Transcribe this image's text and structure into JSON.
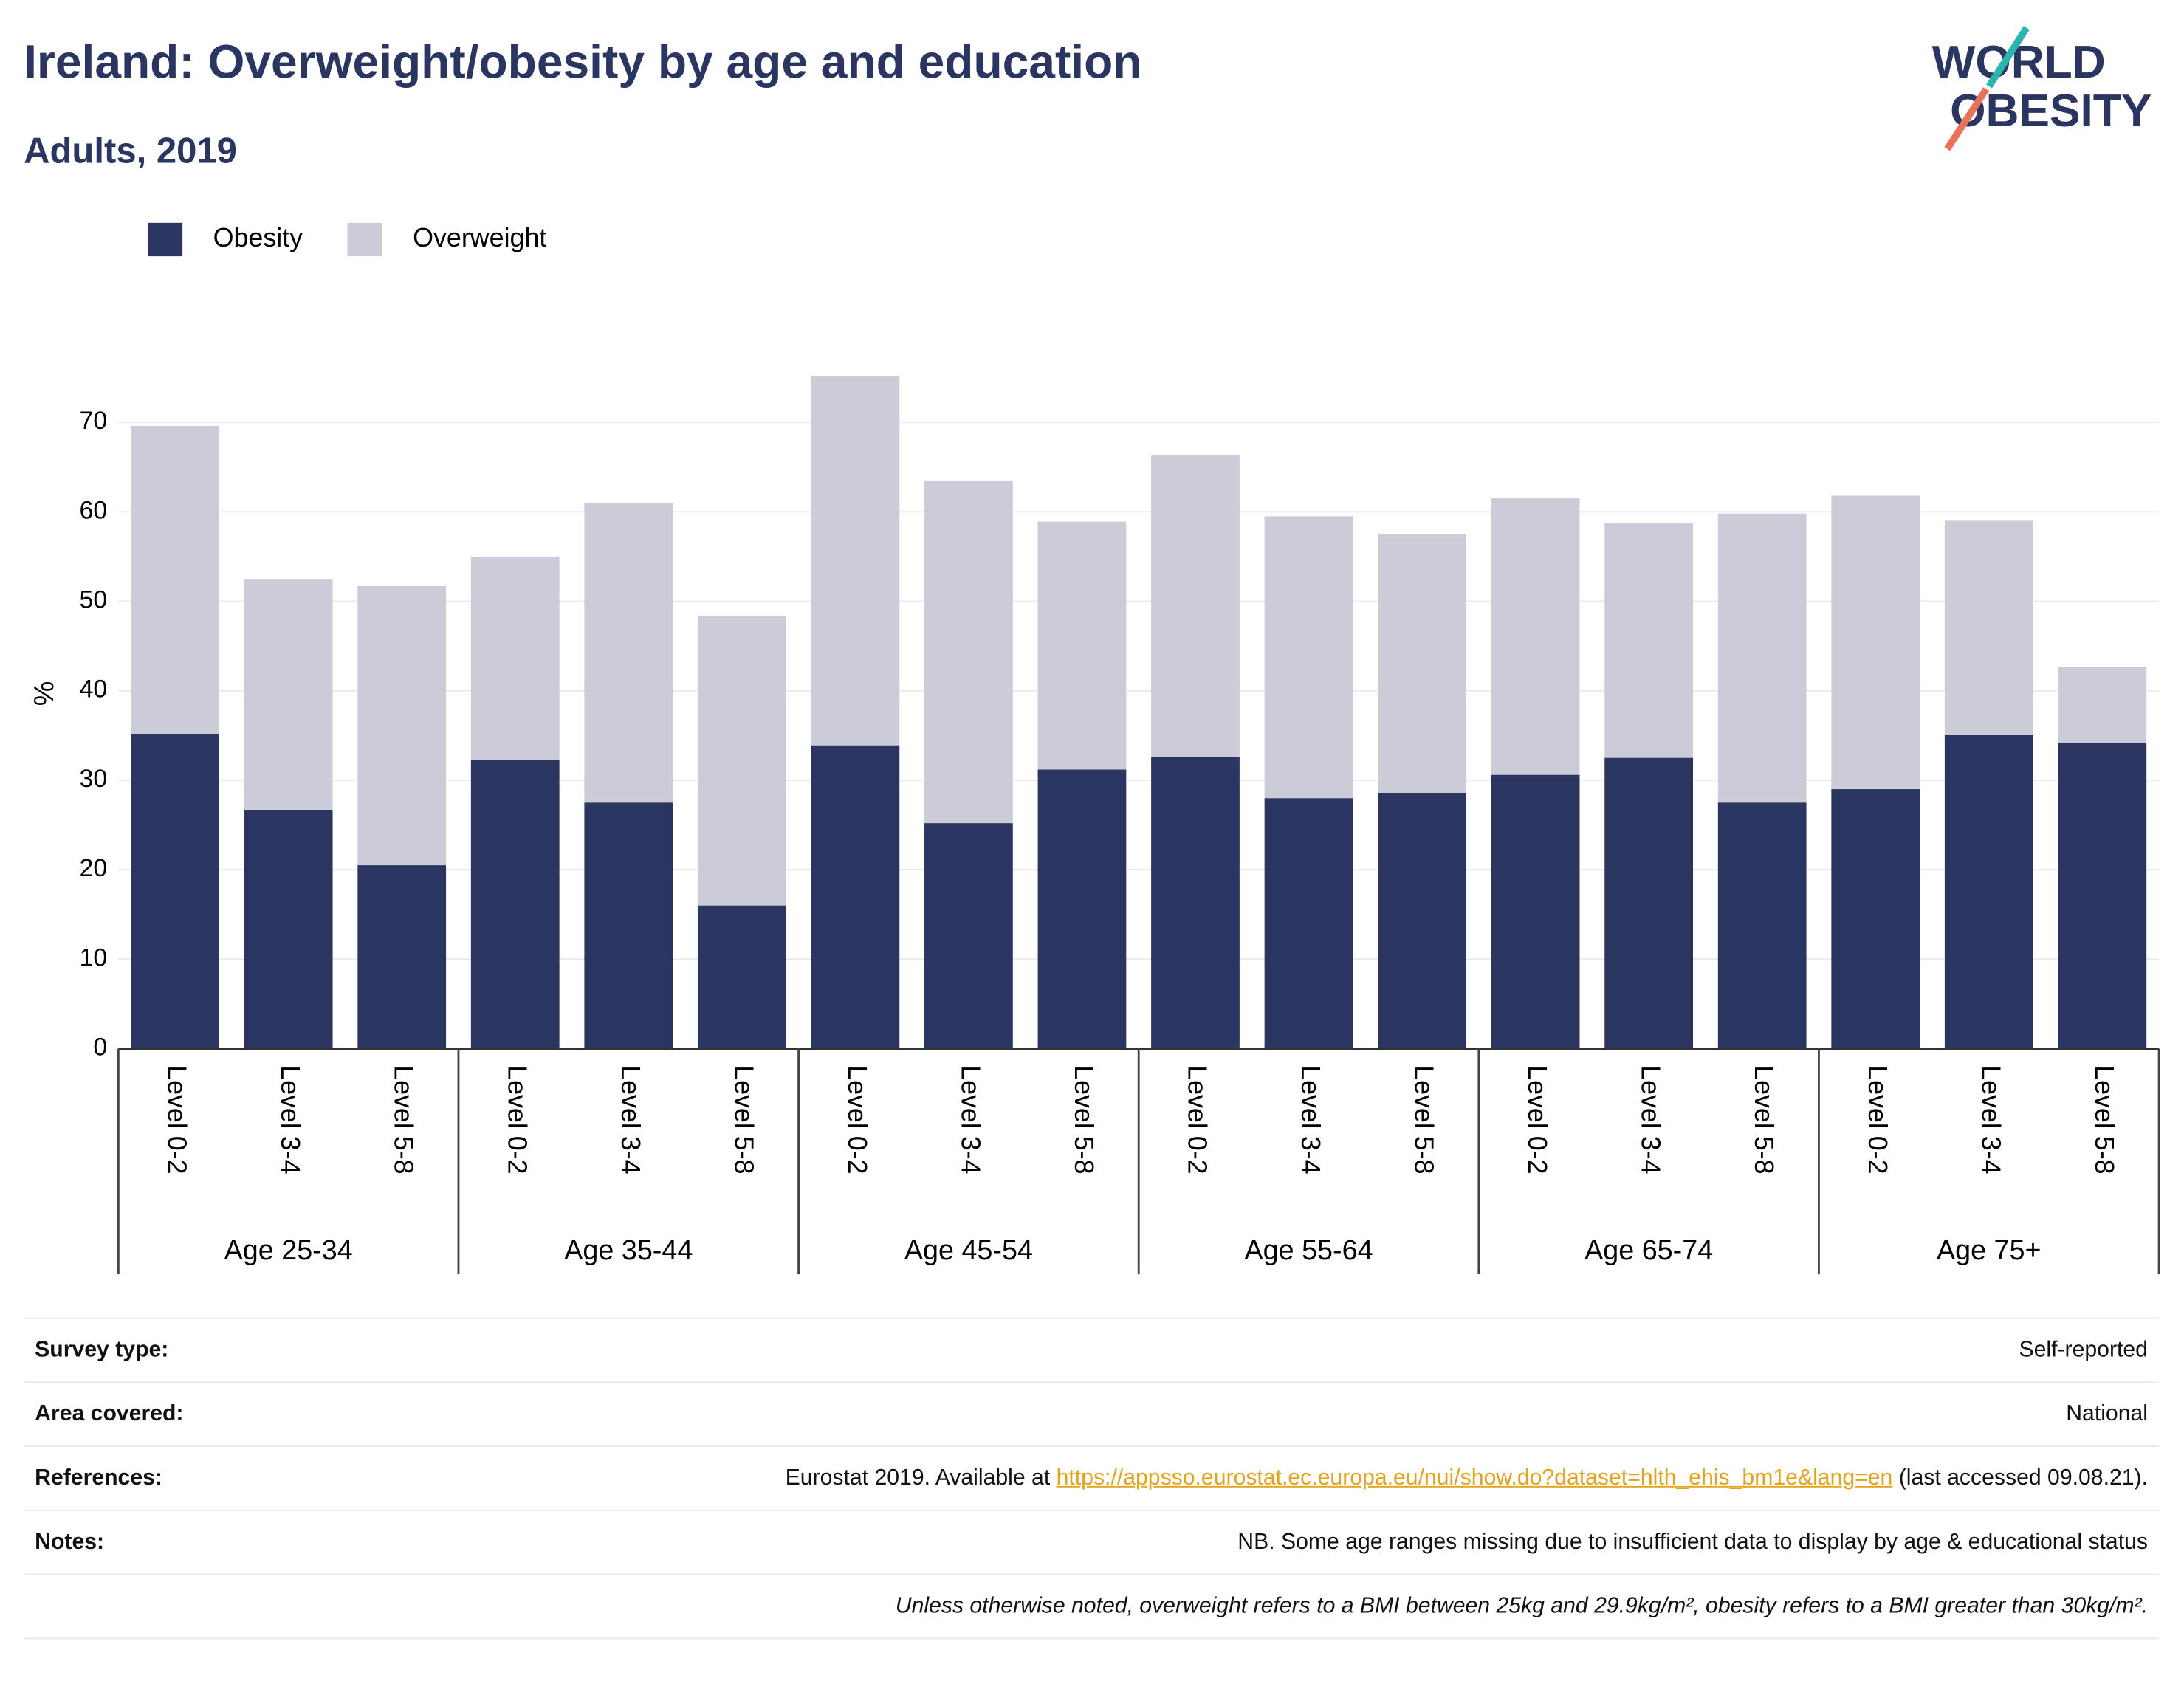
{
  "chart_data": {
    "type": "stacked-bar",
    "title": "Ireland: Overweight/obesity by age and education",
    "subtitle": "Adults, 2019",
    "y_label": "%",
    "categories": [
      "Level 0-2",
      "Level 3-4",
      "Level 5-8",
      "Level 0-2",
      "Level 3-4",
      "Level 5-8",
      "Level 0-2",
      "Level 3-4",
      "Level 5-8",
      "Level 0-2",
      "Level 3-4",
      "Level 5-8",
      "Level 0-2",
      "Level 3-4",
      "Level 5-8",
      "Level 0-2",
      "Level 3-4",
      "Level 5-8"
    ],
    "groups": [
      "Age 25-34",
      "Age 35-44",
      "Age 45-54",
      "Age 55-64",
      "Age 65-74",
      "Age 75+"
    ],
    "series": [
      {
        "name": "Obesity",
        "color": "#2b3561",
        "values": [
          35.2,
          26.7,
          20.5,
          32.3,
          27.5,
          16.0,
          33.9,
          25.2,
          31.2,
          32.6,
          28.0,
          28.6,
          30.6,
          32.5,
          27.5,
          29.0,
          35.1,
          34.2
        ]
      },
      {
        "name": "Overweight",
        "color": "#cbccd8",
        "values": [
          34.4,
          25.8,
          31.2,
          22.7,
          33.5,
          32.4,
          41.3,
          38.3,
          27.7,
          33.7,
          31.5,
          28.9,
          30.9,
          26.2,
          32.3,
          32.8,
          23.9,
          8.5
        ]
      }
    ],
    "ylim": [
      0,
      75.8
    ],
    "yticks": [
      0,
      10,
      20,
      30,
      40,
      50,
      60,
      70
    ],
    "grid": true,
    "legend": "top-left"
  },
  "logo": {
    "line1": "WORLD",
    "line2": "OBESITY"
  },
  "table": {
    "rows": [
      {
        "label": "Survey type:",
        "value": "Self-reported"
      },
      {
        "label": "Area covered:",
        "value": "National"
      },
      {
        "label": "References:",
        "value": "Eurostat 2019. Available at ",
        "link": "https://appsso.eurostat.ec.europa.eu/nui/show.do?dataset=hlth_ehis_bm1e&lang=en",
        "after": " (last accessed 09.08.21)."
      },
      {
        "label": "Notes:",
        "value": "NB. Some age ranges missing due to insufficient data to display by age & educational status"
      }
    ],
    "footnote": "Unless otherwise noted, overweight refers to a BMI between 25kg and 29.9kg/m², obesity refers to a BMI greater than 30kg/m²."
  }
}
